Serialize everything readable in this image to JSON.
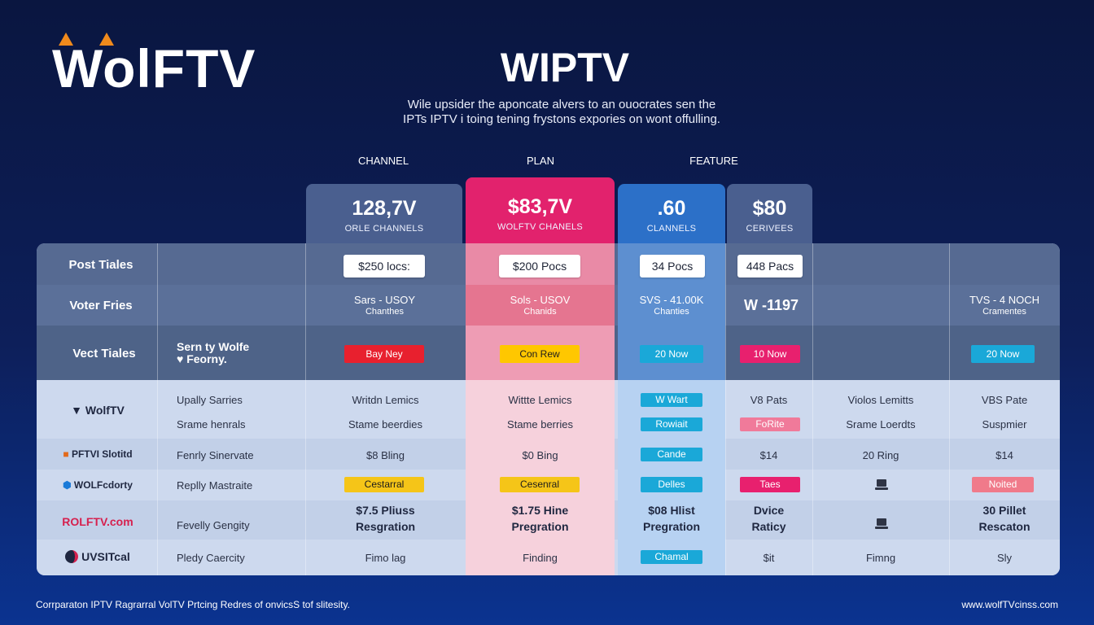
{
  "logo": "WolFTV",
  "main_title": "WIPTV",
  "subtitle": [
    "Wile upsider the aponcate alvers to an ouocrates sen the",
    "IPTs IPTV i toing tening frystons expories on wont offulling."
  ],
  "column_headers": {
    "channel": "CHANNEL",
    "plan": "PLAN",
    "feature": "FEATURE"
  },
  "top_cards": [
    {
      "price": "128,7V",
      "sub": "ORLE CHANNELS",
      "color": "#4a5f8f"
    },
    {
      "price": "$83,7V",
      "sub": "WOLFTV CHANELS",
      "color": "#e2226d"
    },
    {
      "price": ".60",
      "sub": "CLANNELS",
      "color": "#2c70c8"
    },
    {
      "price": "$80",
      "sub": "CERIVEES",
      "color": "#4a5f8f"
    }
  ],
  "rows": {
    "post_tiales": "Post Tiales",
    "voter_fries": "Voter Fries",
    "vect_tiales": "Vect Tiales"
  },
  "boxes": [
    "$250 locs:",
    "$200 Pocs",
    "34 Pocs",
    "448 Pacs"
  ],
  "voter_values": [
    {
      "line1": "Sars - USOY",
      "line2": "Chanthes"
    },
    {
      "line1": "Sols - USOV",
      "line2": "Chanids"
    },
    {
      "line1": "SVS - 41.00K",
      "line2": "Chanties"
    },
    {
      "line1": "W -1197",
      "line2": ""
    },
    {
      "line1": "TVS - 4 NOCH",
      "line2": "Cramentes"
    }
  ],
  "vect_left": [
    "Sern ty Wolfe",
    "♥ Feorny."
  ],
  "vect_pills": [
    {
      "label": "Bay Ney",
      "bg": "#e8202e",
      "fg": "#ffffff"
    },
    {
      "label": "Con Rew",
      "bg": "#ffc700",
      "fg": "#1c1c1c"
    },
    {
      "label": "20 Now",
      "bg": "#1aa8d8",
      "fg": "#ffffff"
    },
    {
      "label": "10 Now",
      "bg": "#e8206e",
      "fg": "#ffffff"
    },
    {
      "label": "20 Now",
      "bg": "#1aa8d8",
      "fg": "#ffffff"
    }
  ],
  "brands": [
    {
      "label": "WolfTV",
      "color": "#1f2740"
    },
    {
      "label": "PFTVI Slotitd",
      "color": "#1f2740"
    },
    {
      "label": "WOLFcdorty",
      "color": "#1f2740"
    },
    {
      "label": "ROLFTV.com",
      "color": "#d6204e"
    },
    {
      "label": "UVSITcal",
      "color": "#1f2740"
    }
  ],
  "feature_rows": [
    {
      "left": [
        "Upally Sarries",
        "Srame henrals"
      ],
      "c1": [
        "Writdn Lemics",
        "Stame beerdies"
      ],
      "c2": [
        "Wittte Lemics",
        "Stame berries"
      ],
      "c3": [
        {
          "label": "W Wart",
          "bg": "#1aa8d8"
        },
        {
          "label": "Rowiait",
          "bg": "#1aa8d8"
        }
      ],
      "c4": [
        {
          "text": "V8 Pats"
        },
        {
          "label": "FoRite",
          "bg": "#f07a9a"
        }
      ],
      "c5": [
        "Violos Lemitts",
        "Srame Loerdts"
      ],
      "c6": [
        "VBS Pate",
        "Suspmier"
      ]
    }
  ],
  "row_ferly": {
    "left": "Fenrly Sinervate",
    "c1": "$8 Bling",
    "c2": "$0 Bing",
    "c3_pill": "Cande",
    "c4": "$14",
    "c5": "20 Ring",
    "c6": "$14"
  },
  "row_replly": {
    "left": "Replly Mastraite",
    "c1_pill": "Cestarral",
    "c2_pill": "Cesenral",
    "c3_pill": "Delles",
    "c4_pill": "Taes",
    "c6_pill": "Noited"
  },
  "row_fevelly": {
    "left": "Fevelly Gengity",
    "c1": [
      "$7.5 Pliuss",
      "Resgration"
    ],
    "c2": [
      "$1.75 Hine",
      "Pregration"
    ],
    "c3": [
      "$08 Hlist",
      "Pregration"
    ],
    "c4": [
      "Dvice",
      "Raticy"
    ],
    "c6": [
      "30 Pillet",
      "Rescaton"
    ]
  },
  "row_pledy": {
    "left": "Pledy Caercity",
    "c1": "Fimo lag",
    "c2": "Finding",
    "c3_pill": "Chamal",
    "c4": "$it",
    "c5": "Fimng",
    "c6": "Sly"
  },
  "footer_left": "Corrparaton IPTV Ragrarral VolTV Prtcing Redres of onvicsS tof slitesity.",
  "footer_right": "www.wolfTVcinss.com"
}
